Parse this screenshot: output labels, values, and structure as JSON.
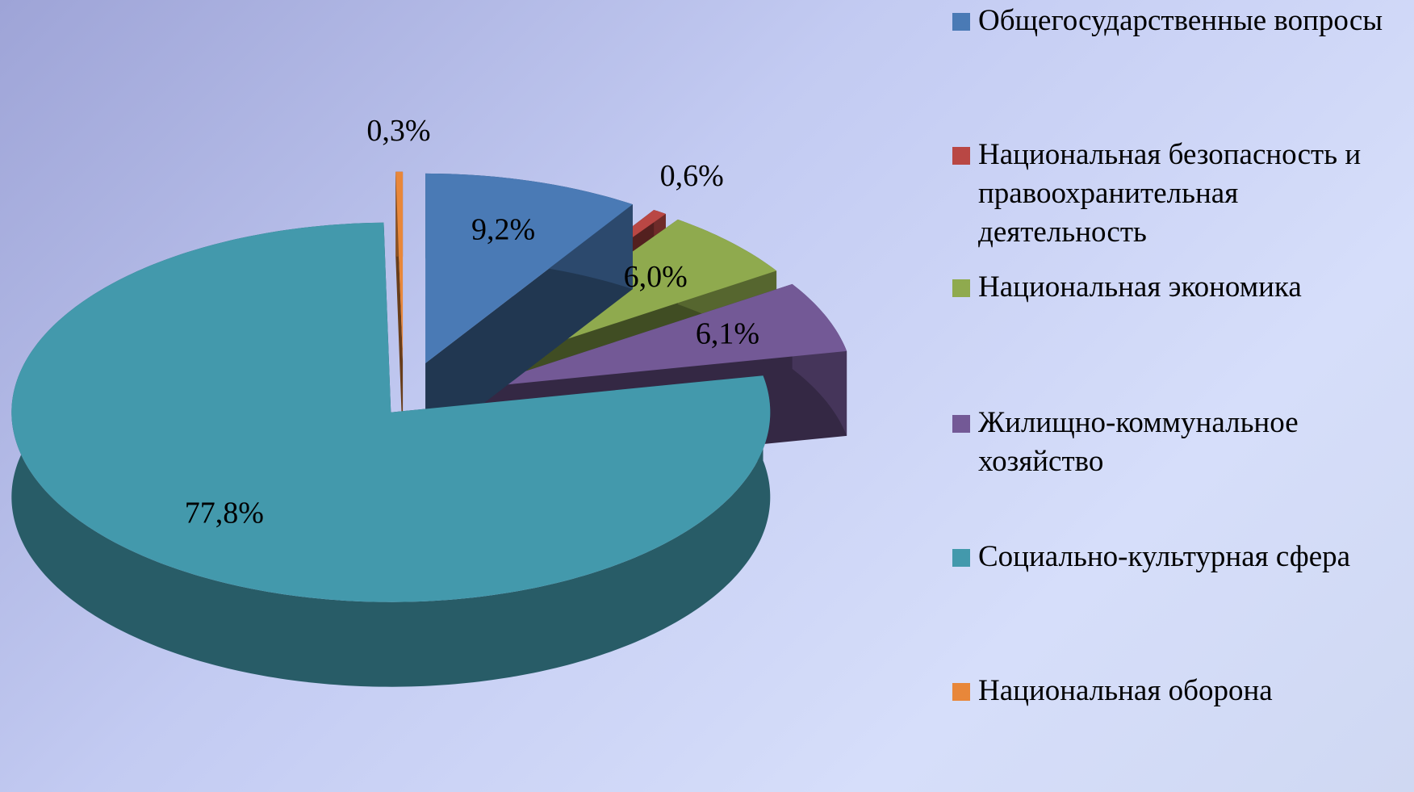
{
  "chart_data": {
    "type": "pie",
    "categories": [
      "Общегосударственные вопросы",
      "Национальная безопасность и правоохранительная деятельность",
      "Национальная экономика",
      "Жилищно-коммунальное хозяйство",
      "Социально-культурная сфера",
      "Национальная оборона"
    ],
    "values": [
      9.2,
      0.6,
      6.0,
      6.1,
      77.8,
      0.3
    ],
    "value_labels": [
      "9,2%",
      "0,6%",
      "6,0%",
      "6,1%",
      "77,8%",
      "0,3%"
    ],
    "colors": [
      "#4a7ab5",
      "#b94744",
      "#8faa4e",
      "#735996",
      "#4399ac",
      "#e8873a"
    ],
    "legend": "right"
  }
}
